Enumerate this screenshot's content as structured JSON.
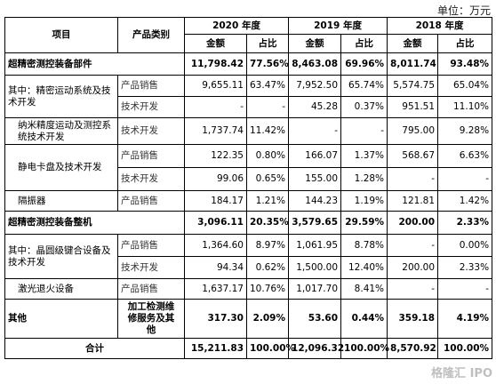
{
  "unit_label": "单位：万元",
  "header": {
    "item": "项目",
    "category": "产品类别",
    "years": [
      "2020 年度",
      "2019 年度",
      "2018 年度"
    ],
    "amount": "金额",
    "ratio": "占比"
  },
  "rows": [
    {
      "label": "超精密测控装备部件",
      "category": "",
      "v": [
        "11,798.42",
        "77.56%",
        "8,463.08",
        "69.96%",
        "8,011.74",
        "93.48%"
      ],
      "bold": true
    },
    {
      "label": "其中：精密运动系统及技术开发",
      "category": "产品销售",
      "v": [
        "9,655.11",
        "63.47%",
        "7,952.50",
        "65.74%",
        "5,574.75",
        "65.04%"
      ]
    },
    {
      "label": "",
      "category": "技术开发",
      "v": [
        "-",
        "-",
        "45.28",
        "0.37%",
        "951.51",
        "11.10%"
      ]
    },
    {
      "label": "纳米精度运动及测控系统技术开发",
      "category": "技术开发",
      "v": [
        "1,737.74",
        "11.42%",
        "-",
        "-",
        "795.00",
        "9.28%"
      ]
    },
    {
      "label": "静电卡盘及技术开发",
      "category": "产品销售",
      "v": [
        "122.35",
        "0.80%",
        "166.07",
        "1.37%",
        "568.67",
        "6.63%"
      ]
    },
    {
      "label": "",
      "category": "技术开发",
      "v": [
        "99.06",
        "0.65%",
        "155.00",
        "1.28%",
        "-",
        "-"
      ]
    },
    {
      "label": "隔振器",
      "category": "产品销售",
      "v": [
        "184.17",
        "1.21%",
        "144.23",
        "1.19%",
        "121.81",
        "1.42%"
      ]
    },
    {
      "label": "超精密测控装备整机",
      "category": "",
      "v": [
        "3,096.11",
        "20.35%",
        "3,579.65",
        "29.59%",
        "200.00",
        "2.33%"
      ],
      "bold": true
    },
    {
      "label": "其中：晶圆级键合设备及技术开发",
      "category": "产品销售",
      "v": [
        "1,364.60",
        "8.97%",
        "1,061.95",
        "8.78%",
        "-",
        "0.00%"
      ]
    },
    {
      "label": "",
      "category": "技术开发",
      "v": [
        "94.34",
        "0.62%",
        "1,500.00",
        "12.40%",
        "200.00",
        "2.33%"
      ]
    },
    {
      "label": "激光退火设备",
      "category": "产品销售",
      "v": [
        "1,637.17",
        "10.76%",
        "1,017.70",
        "8.41%",
        "-",
        "-"
      ]
    },
    {
      "label": "其他",
      "category": "加工检测维修服务及其他",
      "v": [
        "317.30",
        "2.09%",
        "53.60",
        "0.44%",
        "359.18",
        "4.19%"
      ],
      "bold": true
    },
    {
      "label": "合计",
      "category": "",
      "v": [
        "15,211.83",
        "100.00%",
        "12,096.32",
        "100.00%",
        "8,570.92",
        "100.00%"
      ],
      "bold": true
    }
  ],
  "watermark": "格隆汇 IPO"
}
